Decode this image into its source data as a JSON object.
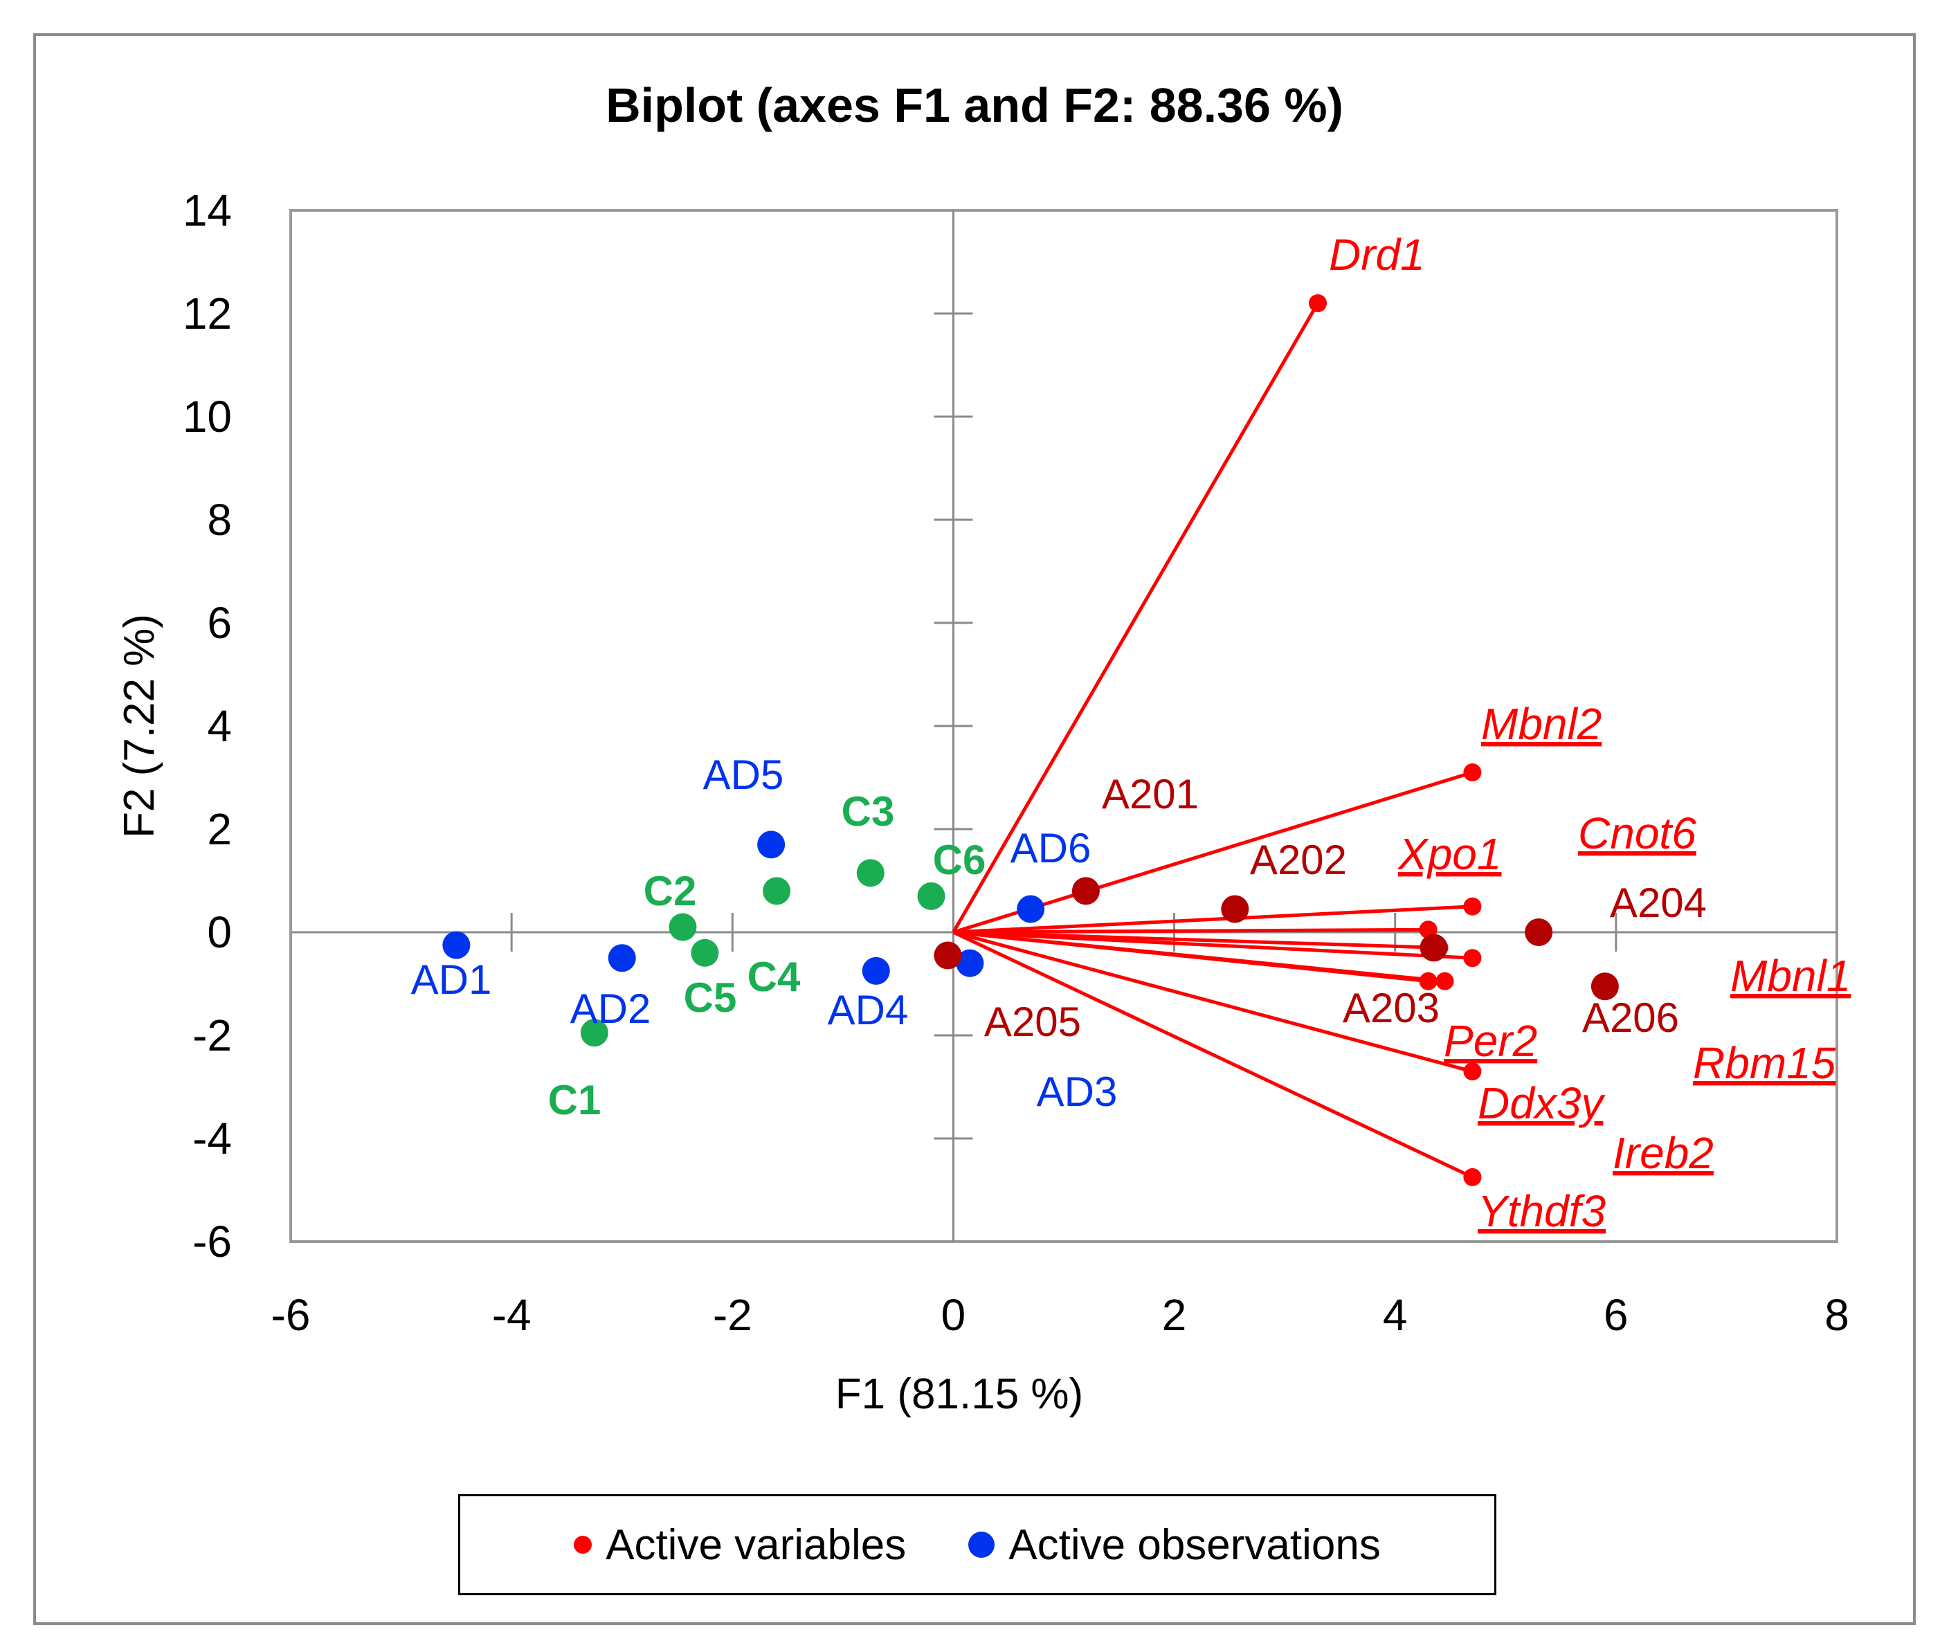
{
  "chart_data": {
    "type": "scatter",
    "title": "Biplot (axes F1 and F2: 88.36 %)",
    "xlabel": "F1 (81.15 %)",
    "ylabel": "F2 (7.22 %)",
    "xlim": [
      -6,
      8
    ],
    "ylim": [
      -6,
      14
    ],
    "xticks": [
      -6,
      -4,
      -2,
      0,
      2,
      4,
      6,
      8
    ],
    "yticks": [
      -6,
      -4,
      -2,
      0,
      2,
      4,
      6,
      8,
      10,
      12,
      14
    ],
    "grid": false,
    "legend": [
      {
        "label": "Active variables",
        "color": "#ff0000"
      },
      {
        "label": "Active observations",
        "color": "#0033ee"
      }
    ],
    "variables": [
      {
        "name": "Drd1",
        "x": 3.3,
        "y": 12.2,
        "underline": false
      },
      {
        "name": "Mbnl2",
        "x": 4.7,
        "y": 3.1,
        "underline": true
      },
      {
        "name": "Xpo1",
        "x": 4.7,
        "y": 0.5,
        "underline": true
      },
      {
        "name": "Cnot6",
        "x": 4.3,
        "y": 0.05,
        "underline": true
      },
      {
        "name": "Mbnl1",
        "x": 4.7,
        "y": -0.5,
        "underline": true
      },
      {
        "name": "Rbm15",
        "x": 4.3,
        "y": -0.95,
        "underline": true
      },
      {
        "name": "Per2",
        "x": 4.45,
        "y": -0.95,
        "underline": true
      },
      {
        "name": "Ddx3y",
        "x": 4.7,
        "y": -2.7,
        "underline": true
      },
      {
        "name": "Ireb2",
        "x": 4.4,
        "y": -0.3,
        "underline": true
      },
      {
        "name": "Ythdf3",
        "x": 4.7,
        "y": -4.75,
        "underline": true
      }
    ],
    "observation_groups": [
      {
        "group": "C",
        "color": "#1aad52",
        "bold": true,
        "points": [
          {
            "name": "C1",
            "x": -3.25,
            "y": -1.95
          },
          {
            "name": "C2",
            "x": -2.45,
            "y": 0.1
          },
          {
            "name": "C3",
            "x": -0.75,
            "y": 1.15
          },
          {
            "name": "C4",
            "x": -1.6,
            "y": 0.8
          },
          {
            "name": "C5",
            "x": -2.25,
            "y": -0.4
          },
          {
            "name": "C6",
            "x": -0.2,
            "y": 0.7
          }
        ]
      },
      {
        "group": "AD",
        "color": "#0033ee",
        "bold": false,
        "points": [
          {
            "name": "AD1",
            "x": -4.5,
            "y": -0.25
          },
          {
            "name": "AD2",
            "x": -3.0,
            "y": -0.5
          },
          {
            "name": "AD3",
            "x": 0.15,
            "y": -0.6
          },
          {
            "name": "AD4",
            "x": -0.7,
            "y": -0.75
          },
          {
            "name": "AD5",
            "x": -1.65,
            "y": 1.7
          },
          {
            "name": "AD6",
            "x": 0.7,
            "y": 0.45
          }
        ]
      },
      {
        "group": "A20",
        "color": "#b30000",
        "bold": false,
        "points": [
          {
            "name": "A201",
            "x": 1.2,
            "y": 0.8
          },
          {
            "name": "A202",
            "x": 2.55,
            "y": 0.45
          },
          {
            "name": "A203",
            "x": 4.35,
            "y": -0.3
          },
          {
            "name": "A204",
            "x": 5.3,
            "y": 0.0
          },
          {
            "name": "A205",
            "x": -0.05,
            "y": -0.45
          },
          {
            "name": "A206",
            "x": 5.9,
            "y": -1.05
          }
        ]
      }
    ]
  }
}
